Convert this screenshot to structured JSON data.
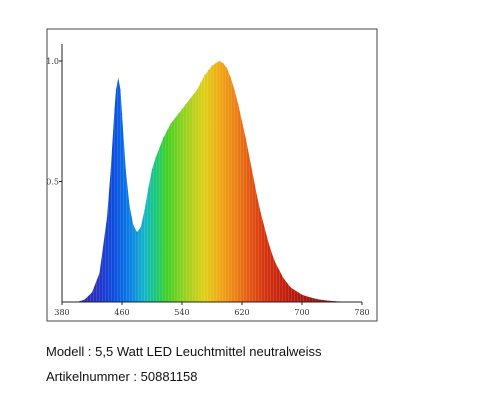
{
  "chart_data": {
    "type": "area",
    "title": "",
    "xlabel": "",
    "ylabel": "",
    "xlim": [
      380,
      780
    ],
    "ylim": [
      0,
      1.0
    ],
    "x_ticks": [
      "380",
      "460",
      "540",
      "620",
      "700",
      "780"
    ],
    "y_ticks": [
      "0.5",
      "1.0"
    ],
    "grid": false,
    "legend": "none",
    "fill": "spectral gradient (wavelength colors)",
    "series": [
      {
        "x": [
          400,
          410,
          420,
          430,
          440,
          445,
          450,
          452,
          455,
          458,
          460,
          465,
          470,
          475,
          480,
          485,
          490,
          495,
          500,
          505,
          510,
          515,
          520,
          525,
          530,
          535,
          540,
          545,
          550,
          555,
          560,
          565,
          570,
          575,
          580,
          585,
          590,
          595,
          600,
          605,
          610,
          615,
          620,
          625,
          630,
          635,
          640,
          645,
          650,
          655,
          660,
          665,
          670,
          675,
          680,
          685,
          690,
          695,
          700,
          705,
          710,
          720,
          730,
          740,
          750,
          760,
          770
        ],
        "values": [
          0.0,
          0.01,
          0.04,
          0.12,
          0.35,
          0.55,
          0.8,
          0.88,
          0.93,
          0.88,
          0.78,
          0.55,
          0.4,
          0.32,
          0.29,
          0.31,
          0.38,
          0.47,
          0.55,
          0.6,
          0.64,
          0.68,
          0.71,
          0.74,
          0.76,
          0.78,
          0.8,
          0.82,
          0.84,
          0.86,
          0.88,
          0.91,
          0.94,
          0.96,
          0.98,
          0.99,
          1.0,
          0.99,
          0.97,
          0.93,
          0.88,
          0.82,
          0.75,
          0.68,
          0.6,
          0.52,
          0.44,
          0.37,
          0.31,
          0.25,
          0.2,
          0.16,
          0.13,
          0.1,
          0.08,
          0.06,
          0.05,
          0.04,
          0.03,
          0.025,
          0.02,
          0.012,
          0.007,
          0.004,
          0.002,
          0.001,
          0.0
        ]
      }
    ]
  },
  "caption": {
    "model": "Modell : 5,5 Watt LED Leuchtmittel neutralweiss",
    "article": "Artikelnummer : 50881158"
  }
}
